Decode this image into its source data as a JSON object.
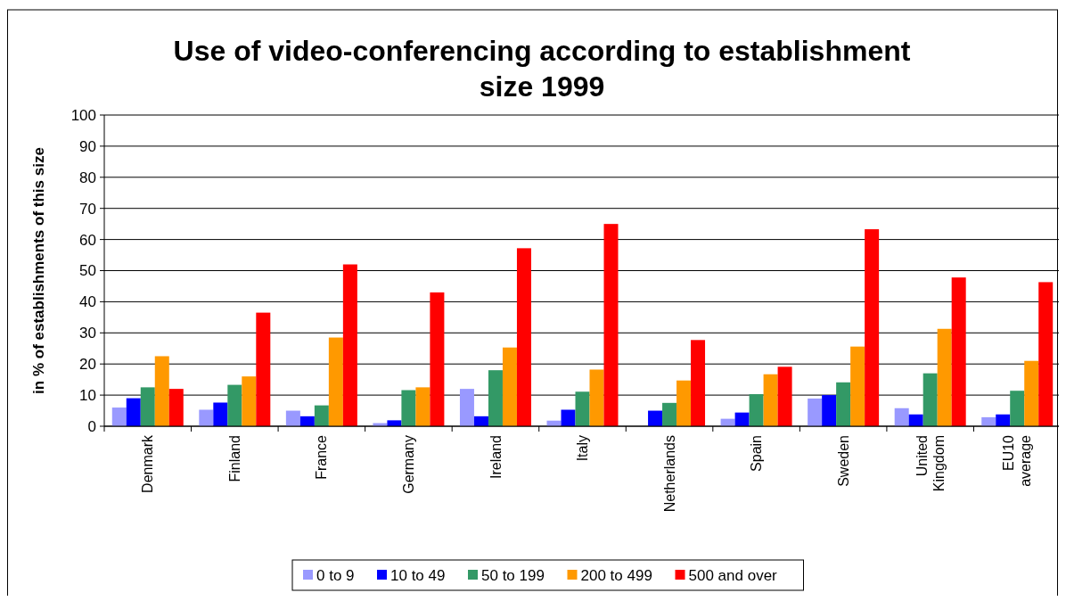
{
  "chart_data": {
    "type": "bar",
    "title": "Use of video-conferencing according to establishment size 1999",
    "ylabel": "in % of establishments of this size",
    "categories": [
      "Denmark",
      "Finland",
      "France",
      "Germany",
      "Ireland",
      "Italy",
      "Netherlands",
      "Spain",
      "Sweden",
      "United Kingdom",
      "EU10 average"
    ],
    "series": [
      {
        "name": "0 to 9",
        "color": "#9999ff",
        "values": [
          6,
          5.3,
          5,
          1,
          12,
          1.8,
          0,
          2.4,
          8.9,
          5.8,
          2.9
        ]
      },
      {
        "name": "10 to 49",
        "color": "#0000ff",
        "values": [
          9,
          7.6,
          3.2,
          1.9,
          3.2,
          5.3,
          5,
          4.4,
          10,
          3.8,
          3.8
        ]
      },
      {
        "name": "50 to 199",
        "color": "#339966",
        "values": [
          12.5,
          13.3,
          6.7,
          11.6,
          18,
          11.1,
          7.5,
          10.3,
          14.1,
          17,
          11.4
        ]
      },
      {
        "name": "200 to 499",
        "color": "#ff9900",
        "values": [
          22.5,
          16,
          28.5,
          12.5,
          25.3,
          18.2,
          14.7,
          16.7,
          25.6,
          31.3,
          21
        ]
      },
      {
        "name": "500 and over",
        "color": "#ff0000",
        "values": [
          12,
          36.5,
          52,
          43,
          57.2,
          65,
          27.7,
          19.1,
          63.3,
          47.8,
          46.3
        ]
      }
    ],
    "ylim": [
      0,
      100
    ],
    "yticks": [
      0,
      10,
      20,
      30,
      40,
      50,
      60,
      70,
      80,
      90,
      100
    ],
    "grid": "y",
    "legend": "bottom"
  }
}
